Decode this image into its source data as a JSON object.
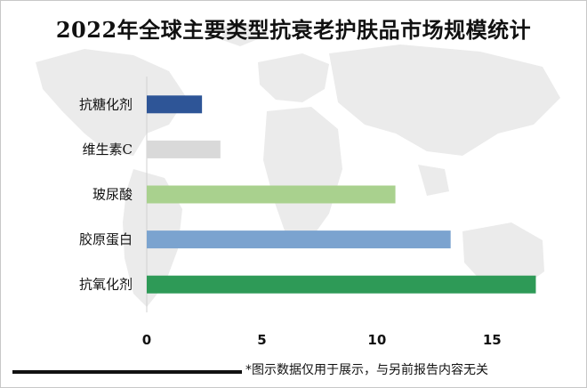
{
  "title": "2022年全球主要类型抗衰老护肤品市场规模统计",
  "footnote": "*图示数据仅用于展示，与另前报告内容无关",
  "colors": {
    "background": "#ffffff",
    "map": "#e9e9e9",
    "axis": "#d0d0d0"
  },
  "chart_data": {
    "type": "bar",
    "orientation": "horizontal",
    "title": "2022年全球主要类型抗衰老护肤品市场规模统计",
    "xlabel": "",
    "ylabel": "",
    "categories": [
      "抗糖化剂",
      "维生素C",
      "玻尿酸",
      "胶原蛋白",
      "抗氧化剂"
    ],
    "values": [
      2.4,
      3.2,
      10.8,
      13.2,
      16.9
    ],
    "bar_colors": [
      "#2e5597",
      "#d9d9d9",
      "#a9d18e",
      "#7ba3cf",
      "#2e9a57"
    ],
    "xlim": [
      0,
      17.5
    ],
    "xticks": [
      0,
      5,
      10,
      15
    ],
    "grid": false,
    "legend": "none"
  }
}
